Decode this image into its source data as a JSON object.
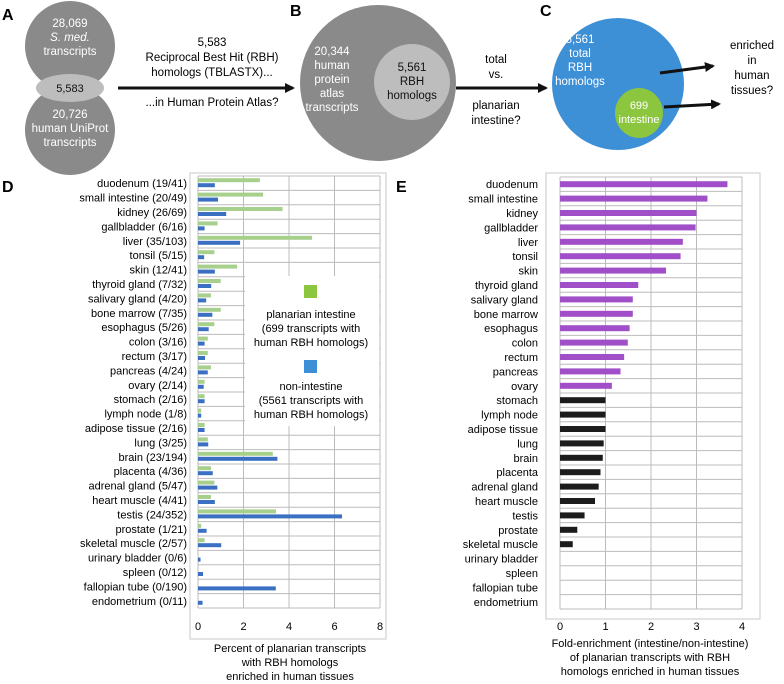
{
  "panel_letters": {
    "a": "A",
    "b": "B",
    "c": "C",
    "d": "D",
    "e": "E"
  },
  "panel_a": {
    "top_count": "28,069",
    "top_species": "S. med.",
    "top_label": "transcripts",
    "overlap_count": "5,583",
    "bottom_count": "20,726",
    "bottom_label1": "human UniProt",
    "bottom_label2": "transcripts",
    "arrow_count": "5,583",
    "arrow_line1": "Reciprocal Best Hit (RBH)",
    "arrow_line2": "homologs (TBLASTX)...",
    "arrow_below": "...in Human Protein Atlas?"
  },
  "panel_b": {
    "outer_lines": [
      "20,344",
      "human",
      "protein",
      "atlas",
      "transcripts"
    ],
    "inner_lines": [
      "5,561",
      "RBH",
      "homologs"
    ],
    "arrow_above1": "total",
    "arrow_above2": "vs.",
    "arrow_below1": "planarian",
    "arrow_below2": "intestine?"
  },
  "panel_c": {
    "outer_lines": [
      "5,561",
      "total",
      "RBH",
      "homologs"
    ],
    "inner_count": "699",
    "inner_label": "intestine",
    "right_lines": [
      "enriched",
      "in",
      "human",
      "tissues?"
    ]
  },
  "colors": {
    "gray_dark": "#8a8a8a",
    "gray_light": "#bdbdbd",
    "blue": "#3d8fd6",
    "green": "#8cc63f",
    "bar_green": "#a6d08c",
    "bar_blue": "#3a6fc2",
    "bar_purple": "#a04fc9",
    "bar_black": "#1c1c1c",
    "grid": "#bcbcbc"
  },
  "chart_data": [
    {
      "id": "D",
      "type": "bar",
      "orientation": "horizontal",
      "categories": [
        "duodenum (19/41)",
        "small intestine (20/49)",
        "kidney (26/69)",
        "gallbladder (6/16)",
        "liver (35/103)",
        "tonsil (5/15)",
        "skin (12/41)",
        "thyroid gland (7/32)",
        "salivary gland (4/20)",
        "bone marrow (7/35)",
        "esophagus (5/26)",
        "colon (3/16)",
        "rectum (3/17)",
        "pancreas (4/24)",
        "ovary (2/14)",
        "stomach (2/16)",
        "lymph node (1/8)",
        "adipose tissue (2/16)",
        "lung (3/25)",
        "brain (23/194)",
        "placenta (4/36)",
        "adrenal gland (5/47)",
        "heart muscle (4/41)",
        "testis (24/352)",
        "prostate (1/21)",
        "skeletal muscle (2/57)",
        "urinary bladder (0/6)",
        "spleen (0/12)",
        "fallopian tube (0/190)",
        "endometrium (0/11)"
      ],
      "series": [
        {
          "name": "planarian intestine (699 transcripts with human RBH homologs)",
          "color": "#a6d08c",
          "values": [
            2.72,
            2.86,
            3.72,
            0.86,
            5.01,
            0.72,
            1.72,
            1.0,
            0.57,
            1.0,
            0.72,
            0.43,
            0.43,
            0.57,
            0.29,
            0.29,
            0.14,
            0.29,
            0.43,
            3.29,
            0.57,
            0.72,
            0.57,
            3.43,
            0.14,
            0.29,
            0.0,
            0.0,
            0.0,
            0.0
          ]
        },
        {
          "name": "non-intestine (5561 transcripts with human RBH homologs)",
          "color": "#3a6fc2",
          "values": [
            0.74,
            0.88,
            1.24,
            0.29,
            1.85,
            0.27,
            0.74,
            0.58,
            0.36,
            0.63,
            0.47,
            0.29,
            0.31,
            0.43,
            0.25,
            0.29,
            0.14,
            0.29,
            0.45,
            3.49,
            0.65,
            0.85,
            0.74,
            6.33,
            0.38,
            1.02,
            0.11,
            0.22,
            3.42,
            0.2
          ]
        }
      ],
      "legend_entries": [
        "planarian intestine",
        "(699 transcripts with",
        "human RBH homologs)",
        "non-intestine",
        "(5561 transcripts with",
        "human RBH homologs)"
      ],
      "xlim": [
        0,
        8
      ],
      "xticks": [
        "0",
        "2",
        "4",
        "6",
        "8"
      ],
      "xlabel_lines": [
        "Percent of planarian transcripts",
        "with RBH homologs",
        "enriched in human tissues"
      ],
      "grid": true
    },
    {
      "id": "E",
      "type": "bar",
      "orientation": "horizontal",
      "categories": [
        "duodenum",
        "small intestine",
        "kidney",
        "gallbladder",
        "liver",
        "tonsil",
        "skin",
        "thyroid gland",
        "salivary gland",
        "bone marrow",
        "esophagus",
        "colon",
        "rectum",
        "pancreas",
        "ovary",
        "stomach",
        "lymph node",
        "adipose tissue",
        "lung",
        "brain",
        "placenta",
        "adrenal gland",
        "heart muscle",
        "testis",
        "prostate",
        "skeletal muscle",
        "urinary bladder",
        "spleen",
        "fallopian tube",
        "endometrium"
      ],
      "values": [
        3.68,
        3.24,
        3.0,
        2.98,
        2.7,
        2.65,
        2.33,
        1.72,
        1.6,
        1.6,
        1.53,
        1.49,
        1.41,
        1.33,
        1.14,
        1.0,
        1.0,
        1.0,
        0.96,
        0.94,
        0.89,
        0.85,
        0.77,
        0.54,
        0.38,
        0.28,
        0,
        0,
        0,
        0
      ],
      "highlight_count": 15,
      "highlight_color": "#a04fc9",
      "base_color": "#1c1c1c",
      "xlim": [
        0,
        4
      ],
      "xticks": [
        "0",
        "1",
        "2",
        "3",
        "4"
      ],
      "xlabel_lines": [
        "Fold-enrichment (intestine/non-intestine)",
        "of planarian transcripts with RBH",
        "homologs enriched in human tissues"
      ],
      "grid": true
    }
  ]
}
